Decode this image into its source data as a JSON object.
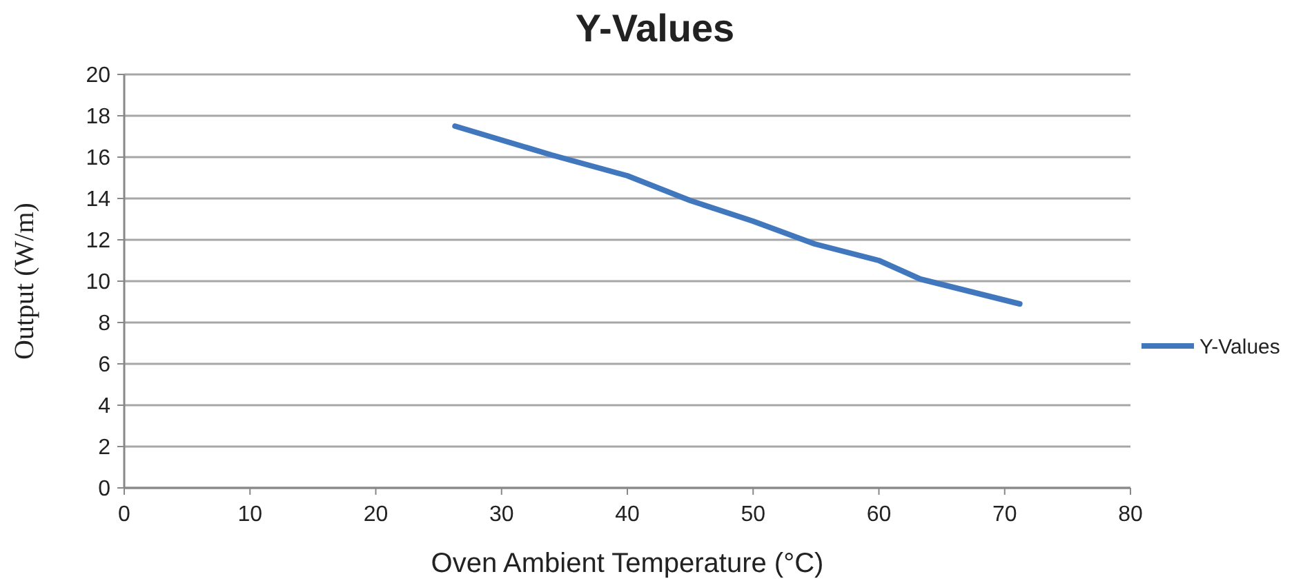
{
  "chart_data": {
    "type": "line",
    "title": "Y-Values",
    "xlabel": "Oven Ambient Temperature (°C)",
    "ylabel": "Output (W/m)",
    "x": [
      26.3,
      34,
      40,
      45,
      50,
      54.9,
      60,
      63.3,
      71.2
    ],
    "series": [
      {
        "name": "Y-Values",
        "color": "#4077bd",
        "values": [
          17.5,
          16.1,
          15.1,
          13.9,
          12.9,
          11.8,
          11,
          10.1,
          8.9
        ]
      }
    ],
    "xlim": [
      0,
      80
    ],
    "xticks": [
      0,
      10,
      20,
      30,
      40,
      50,
      60,
      70,
      80
    ],
    "ylim": [
      0,
      20
    ],
    "yticks": [
      0,
      2,
      4,
      6,
      8,
      10,
      12,
      14,
      16,
      18,
      20
    ],
    "grid": "y",
    "legend": "right",
    "marker": "none",
    "line_style": "solid"
  }
}
